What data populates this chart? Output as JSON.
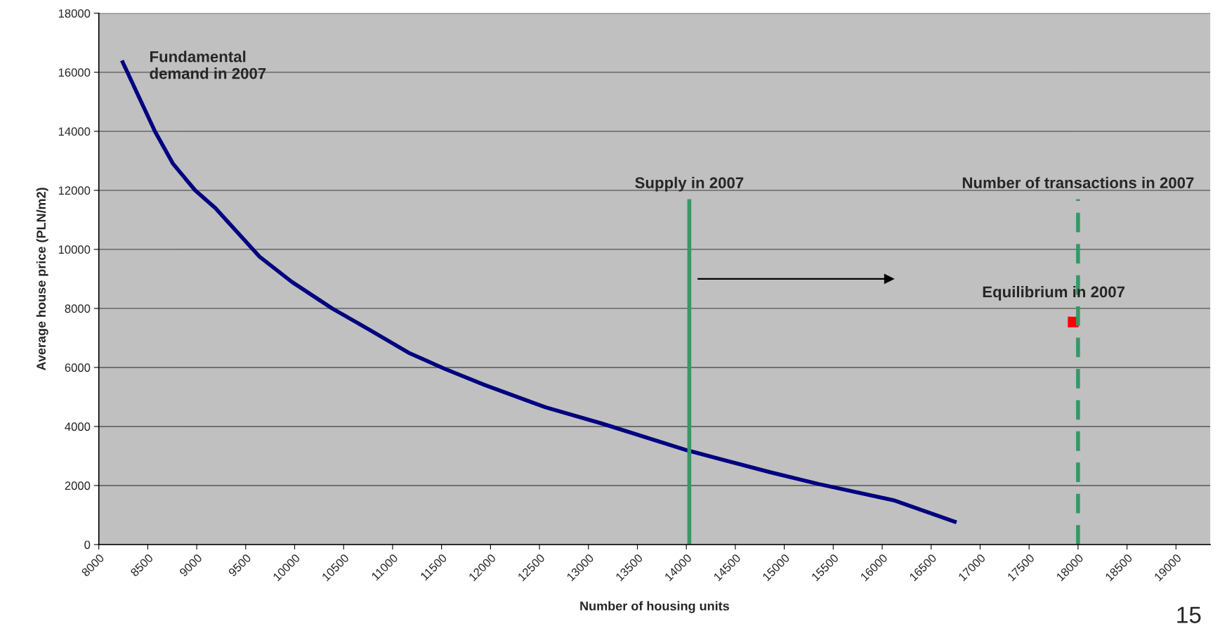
{
  "chart_data": {
    "type": "line",
    "xlabel": "Number of housing units",
    "ylabel": "Average house price (PLN/m2)",
    "xlim": [
      8000,
      19350
    ],
    "xticks": [
      8000,
      8500,
      9000,
      9500,
      10000,
      10500,
      11000,
      11500,
      12000,
      12500,
      13000,
      13500,
      14000,
      14500,
      15000,
      15500,
      16000,
      16500,
      17000,
      17500,
      18000,
      18500,
      19000
    ],
    "ylim": [
      0,
      18000
    ],
    "yticks": [
      0,
      2000,
      4000,
      6000,
      8000,
      10000,
      12000,
      14000,
      16000,
      18000
    ],
    "grid": "y",
    "legend": false,
    "series": [
      {
        "type": "line",
        "name": "Fundamental\ndemand in 2007",
        "color": "#000080",
        "x": [
          8236,
          8573,
          8758,
          8984,
          9190,
          9642,
          9971,
          10382,
          10752,
          11163,
          11534,
          11945,
          12562,
          13138,
          14001,
          14855,
          15352,
          16117,
          16759
        ],
        "values": [
          16400,
          14000,
          12900,
          12000,
          11400,
          9750,
          8900,
          8000,
          7300,
          6500,
          5950,
          5400,
          4650,
          4100,
          3200,
          2450,
          2050,
          1500,
          750
        ]
      },
      {
        "type": "line",
        "name": "Supply in 2007",
        "color": "#339966",
        "line_style": "solid",
        "x": [
          14030,
          14030
        ],
        "values": [
          0,
          11700
        ]
      },
      {
        "type": "line",
        "name": "Number of transactions in 2007",
        "color": "#339966",
        "line_style": "dashed",
        "x": [
          18000,
          18000
        ],
        "values": [
          0,
          11700
        ]
      },
      {
        "type": "scatter",
        "name": "Equilibrium in 2007",
        "color": "#ff0000",
        "marker": "square",
        "x": [
          17950
        ],
        "values": [
          7540
        ]
      },
      {
        "color": "#000000",
        "x": [
          14120,
          16070
        ],
        "values": [
          9000,
          9000
        ]
      }
    ],
    "annotations": [
      "15"
    ]
  }
}
